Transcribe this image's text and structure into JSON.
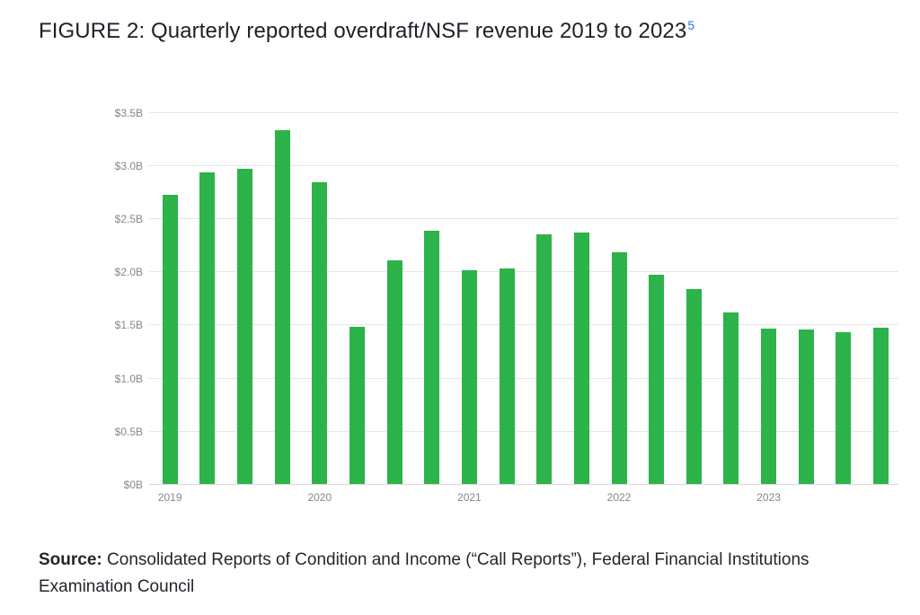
{
  "page": {
    "title": "FIGURE 2: Quarterly reported overdraft/NSF revenue 2019 to 2023",
    "footnote_marker": "5"
  },
  "chart_data": {
    "type": "bar",
    "title": "FIGURE 2: Quarterly reported overdraft/NSF revenue 2019 to 2023",
    "unit": "USD billions",
    "bar_color": "#2cb34a",
    "categories": [
      "2019 Q1",
      "2019 Q2",
      "2019 Q3",
      "2019 Q4",
      "2020 Q1",
      "2020 Q2",
      "2020 Q3",
      "2020 Q4",
      "2021 Q1",
      "2021 Q2",
      "2021 Q3",
      "2021 Q4",
      "2022 Q1",
      "2022 Q2",
      "2022 Q3",
      "2022 Q4",
      "2023 Q1",
      "2023 Q2",
      "2023 Q3",
      "2023 Q4"
    ],
    "values": [
      2.72,
      2.93,
      2.97,
      3.33,
      2.84,
      1.48,
      2.1,
      2.38,
      2.01,
      2.03,
      2.35,
      2.37,
      2.18,
      1.97,
      1.83,
      1.61,
      1.46,
      1.45,
      1.43,
      1.47
    ],
    "x_tick_labels": [
      "2019",
      "2020",
      "2021",
      "2022",
      "2023"
    ],
    "x_tick_indices": [
      0,
      4,
      8,
      12,
      16
    ],
    "y_tick_labels": [
      "$0B",
      "$0.5B",
      "$1.0B",
      "$1.5B",
      "$2.0B",
      "$2.5B",
      "$3.0B",
      "$3.5B"
    ],
    "y_tick_values": [
      0,
      0.5,
      1.0,
      1.5,
      2.0,
      2.5,
      3.0,
      3.5
    ],
    "ylim": [
      0,
      3.625
    ],
    "grid": true,
    "legend": false,
    "xlabel": "",
    "ylabel": ""
  },
  "footer": {
    "source_label": "Source:",
    "source_text": " Consolidated Reports of Condition and Income (“Call Reports”), Federal Financial Institutions Examination Council"
  }
}
